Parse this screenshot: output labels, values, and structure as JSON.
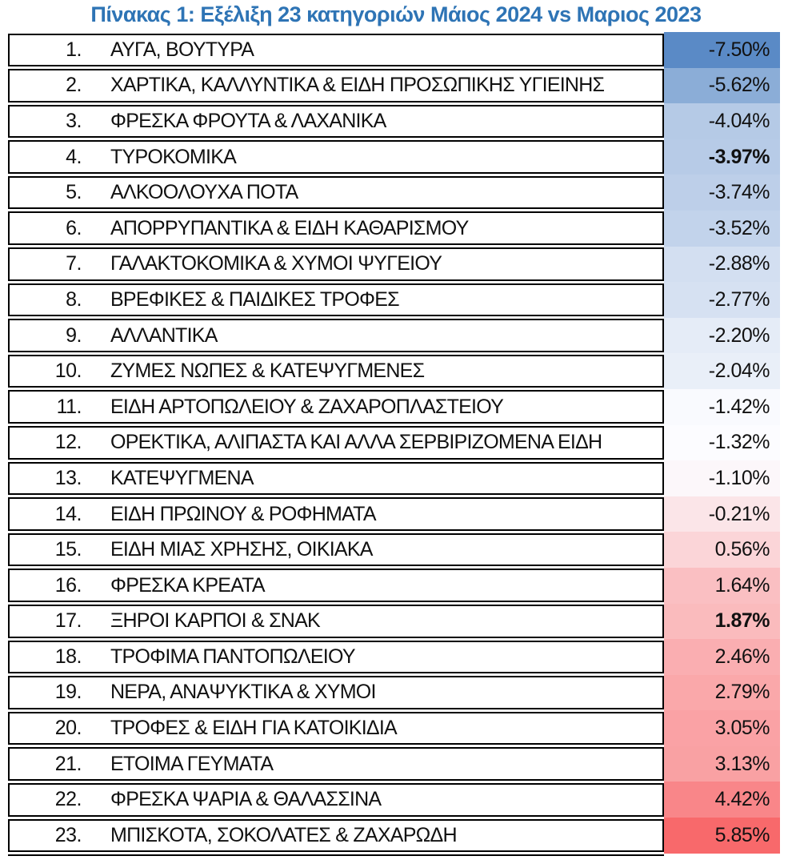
{
  "title": "Πίνακας 1: Εξέλιξη 23 κατηγοριών Μάιος 2024 vs Μαριος 2023",
  "colors": {
    "title_text": "#2E74B5",
    "row_border": "#000000",
    "scale_negative_end": "#5A8AC6",
    "scale_midpoint": "#FCFCFF",
    "scale_positive_end": "#F8696B"
  },
  "table": {
    "rows": [
      {
        "num": "1.",
        "name": "ΑΥΓΑ, ΒΟΥΤΥΡΑ",
        "value": "-7.50%",
        "color": "#5A8AC6",
        "bold": false
      },
      {
        "num": "2.",
        "name": "ΧΑΡΤΙΚΑ, ΚΑΛΛΥΝΤΙΚΑ & ΕΙΔΗ ΠΡΟΣΩΠΙΚΗΣ ΥΓΙΕΙΝΗΣ",
        "value": "-5.62%",
        "color": "#8BADD7",
        "bold": false
      },
      {
        "num": "3.",
        "name": "ΦΡΕΣΚΑ ΦΡΟΥΤΑ & ΛΑΧΑΝΙΚΑ",
        "value": "-4.04%",
        "color": "#B5CAE6",
        "bold": false
      },
      {
        "num": "4.",
        "name": "ΤΥΡΟΚΟΜΙΚΑ",
        "value": "-3.97%",
        "color": "#B7CBE7",
        "bold": true
      },
      {
        "num": "5.",
        "name": "ΑΛΚΟΟΛΟΥΧΑ ΠΟΤΑ",
        "value": "-3.74%",
        "color": "#BDCFE9",
        "bold": false
      },
      {
        "num": "6.",
        "name": "ΑΠΟΡΡΥΠΑΝΤΙΚΑ & ΕΙΔΗ ΚΑΘΑΡΙΣΜΟΥ",
        "value": "-3.52%",
        "color": "#C2D3EB",
        "bold": false
      },
      {
        "num": "7.",
        "name": "ΓΑΛΑΚΤΟΚΟΜΙΚΑ & ΧΥΜΟΙ ΨΥΓΕΙΟΥ",
        "value": "-2.88%",
        "color": "#D3DFF1",
        "bold": false
      },
      {
        "num": "8.",
        "name": "ΒΡΕΦΙΚΕΣ & ΠΑΙΔΙΚΕΣ ΤΡΟΦΕΣ",
        "value": "-2.77%",
        "color": "#D6E1F2",
        "bold": false
      },
      {
        "num": "9.",
        "name": "ΑΛΛΑΝΤΙΚΑ",
        "value": "-2.20%",
        "color": "#E5ECF7",
        "bold": false
      },
      {
        "num": "10.",
        "name": "ΖΥΜΕΣ ΝΩΠΕΣ & ΚΑΤΕΨΥΓΜΕΝΕΣ",
        "value": "-2.04%",
        "color": "#E9EFF8",
        "bold": false
      },
      {
        "num": "11.",
        "name": "ΕΙΔΗ ΑΡΤΟΠΩΛΕΙΟΥ & ΖΑΧΑΡΟΠΛΑΣΤΕΙΟΥ",
        "value": "-1.42%",
        "color": "#F9FAFE",
        "bold": false
      },
      {
        "num": "12.",
        "name": "ΟΡΕΚΤΙΚΑ, ΑΛΙΠΑΣΤΑ ΚΑΙ ΑΛΛΑ ΣΕΡΒΙΡΙΖΟΜΕΝΑ ΕΙΔΗ",
        "value": "-1.32%",
        "color": "#FCFCFF",
        "bold": false
      },
      {
        "num": "13.",
        "name": "ΚΑΤΕΨΥΓΜΕΝΑ",
        "value": "-1.10%",
        "color": "#FCF7FA",
        "bold": false
      },
      {
        "num": "14.",
        "name": "ΕΙΔΗ ΠΡΩΙΝΟΥ & ΡΟΦΗΜΑΤΑ",
        "value": "-0.21%",
        "color": "#FBE5E8",
        "bold": false
      },
      {
        "num": "15.",
        "name": "ΕΙΔΗ ΜΙΑΣ ΧΡΗΣΗΣ, ΟΙΚΙΑΚΑ",
        "value": "0.56%",
        "color": "#FBD5D8",
        "bold": false
      },
      {
        "num": "16.",
        "name": "ΦΡΕΣΚΑ ΚΡΕΑΤΑ",
        "value": "1.64%",
        "color": "#FABFC2",
        "bold": false
      },
      {
        "num": "17.",
        "name": "ΞΗΡΟΙ ΚΑΡΠΟΙ & ΣΝΑΚ",
        "value": "1.87%",
        "color": "#FABBBD",
        "bold": true
      },
      {
        "num": "18.",
        "name": "ΤΡΟΦΙΜΑ ΠΑΝΤΟΠΩΛΕΙΟΥ",
        "value": "2.46%",
        "color": "#FAAEB1",
        "bold": false
      },
      {
        "num": "19.",
        "name": "ΝΕΡΑ, ΑΝΑΨΥΚΤΙΚΑ & ΧΥΜΟΙ",
        "value": "2.79%",
        "color": "#FAA8AA",
        "bold": false
      },
      {
        "num": "20.",
        "name": "ΤΡΟΦΕΣ & ΕΙΔΗ ΓΙΑ ΚΑΤΟΙΚΙΔΙΑ",
        "value": "3.05%",
        "color": "#FAA2A5",
        "bold": false
      },
      {
        "num": "21.",
        "name": "ΕΤΟΙΜΑ ΓΕΥΜΑΤΑ",
        "value": "3.13%",
        "color": "#F9A1A3",
        "bold": false
      },
      {
        "num": "22.",
        "name": "ΦΡΕΣΚΑ ΨΑΡΙΑ & ΘΑΛΑΣΣΙΝΑ",
        "value": "4.42%",
        "color": "#F98689",
        "bold": false
      },
      {
        "num": "23.",
        "name": "ΜΠΙΣΚΟΤΑ, ΣΟΚΟΛΑΤΕΣ & ΖΑΧΑΡΩΔΗ",
        "value": "5.85%",
        "color": "#F8696B",
        "bold": false
      }
    ]
  },
  "chart_data": {
    "type": "table",
    "title": "Πίνακας 1: Εξέλιξη 23 κατηγοριών Μάιος 2024 vs Μαριος 2023",
    "categories": [
      "ΑΥΓΑ, ΒΟΥΤΥΡΑ",
      "ΧΑΡΤΙΚΑ, ΚΑΛΛΥΝΤΙΚΑ & ΕΙΔΗ ΠΡΟΣΩΠΙΚΗΣ ΥΓΙΕΙΝΗΣ",
      "ΦΡΕΣΚΑ ΦΡΟΥΤΑ & ΛΑΧΑΝΙΚΑ",
      "ΤΥΡΟΚΟΜΙΚΑ",
      "ΑΛΚΟΟΛΟΥΧΑ ΠΟΤΑ",
      "ΑΠΟΡΡΥΠΑΝΤΙΚΑ & ΕΙΔΗ ΚΑΘΑΡΙΣΜΟΥ",
      "ΓΑΛΑΚΤΟΚΟΜΙΚΑ & ΧΥΜΟΙ ΨΥΓΕΙΟΥ",
      "ΒΡΕΦΙΚΕΣ & ΠΑΙΔΙΚΕΣ ΤΡΟΦΕΣ",
      "ΑΛΛΑΝΤΙΚΑ",
      "ΖΥΜΕΣ ΝΩΠΕΣ & ΚΑΤΕΨΥΓΜΕΝΕΣ",
      "ΕΙΔΗ ΑΡΤΟΠΩΛΕΙΟΥ & ΖΑΧΑΡΟΠΛΑΣΤΕΙΟΥ",
      "ΟΡΕΚΤΙΚΑ, ΑΛΙΠΑΣΤΑ ΚΑΙ ΑΛΛΑ ΣΕΡΒΙΡΙΖΟΜΕΝΑ ΕΙΔΗ",
      "ΚΑΤΕΨΥΓΜΕΝΑ",
      "ΕΙΔΗ ΠΡΩΙΝΟΥ & ΡΟΦΗΜΑΤΑ",
      "ΕΙΔΗ ΜΙΑΣ ΧΡΗΣΗΣ, ΟΙΚΙΑΚΑ",
      "ΦΡΕΣΚΑ ΚΡΕΑΤΑ",
      "ΞΗΡΟΙ ΚΑΡΠΟΙ & ΣΝΑΚ",
      "ΤΡΟΦΙΜΑ ΠΑΝΤΟΠΩΛΕΙΟΥ",
      "ΝΕΡΑ, ΑΝΑΨΥΚΤΙΚΑ & ΧΥΜΟΙ",
      "ΤΡΟΦΕΣ & ΕΙΔΗ ΓΙΑ ΚΑΤΟΙΚΙΔΙΑ",
      "ΕΤΟΙΜΑ ΓΕΥΜΑΤΑ",
      "ΦΡΕΣΚΑ ΨΑΡΙΑ & ΘΑΛΑΣΣΙΝΑ",
      "ΜΠΙΣΚΟΤΑ, ΣΟΚΟΛΑΤΕΣ & ΖΑΧΑΡΩΔΗ"
    ],
    "values": [
      -7.5,
      -5.62,
      -4.04,
      -3.97,
      -3.74,
      -3.52,
      -2.88,
      -2.77,
      -2.2,
      -2.04,
      -1.42,
      -1.32,
      -1.1,
      -0.21,
      0.56,
      1.64,
      1.87,
      2.46,
      2.79,
      3.05,
      3.13,
      4.42,
      5.85
    ],
    "value_format": "percent",
    "color_scale": {
      "min": "#5A8AC6",
      "mid": "#FCFCFF",
      "max": "#F8696B"
    }
  }
}
